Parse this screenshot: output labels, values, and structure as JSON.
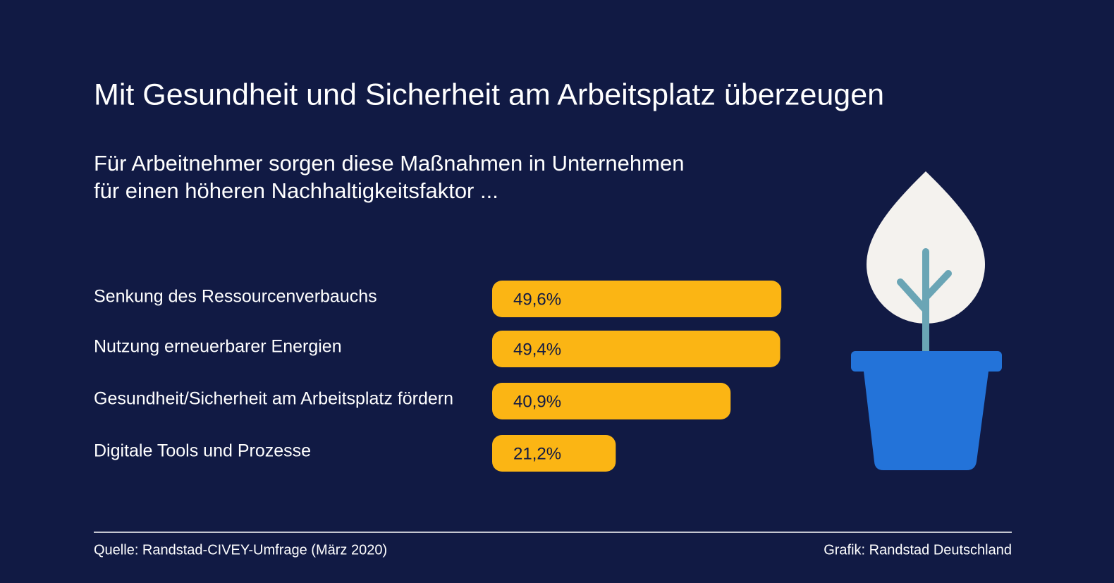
{
  "chart_data": {
    "type": "bar",
    "orientation": "horizontal",
    "title": "Mit Gesundheit und Sicherheit am Arbeitsplatz überzeugen",
    "subtitle": [
      "Für Arbeitnehmer sorgen diese Maßnahmen in Unternehmen",
      "für einen höheren Nachhaltigkeitsfaktor ..."
    ],
    "categories": [
      "Senkung des Ressourcenverbauchs",
      "Nutzung erneuerbarer Energien",
      "Gesundheit/Sicherheit am Arbeitsplatz fördern",
      "Digitale Tools und Prozesse"
    ],
    "values": [
      49.6,
      49.4,
      40.9,
      21.2
    ],
    "value_labels": [
      "49,6%",
      "49,4%",
      "40,9%",
      "21,2%"
    ],
    "color": "#fbb514",
    "source": "Quelle: Randstad-CIVEY-Umfrage (März 2020)",
    "credit": "Grafik: Randstad Deutschland"
  }
}
